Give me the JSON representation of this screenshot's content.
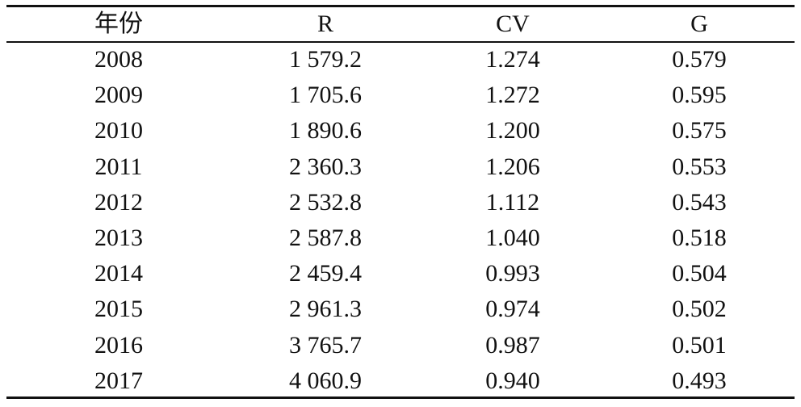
{
  "table": {
    "header": [
      "年份",
      "R",
      "CV",
      "G"
    ],
    "rows": [
      [
        "2008",
        "1 579.2",
        "1.274",
        "0.579"
      ],
      [
        "2009",
        "1 705.6",
        "1.272",
        "0.595"
      ],
      [
        "2010",
        "1 890.6",
        "1.200",
        "0.575"
      ],
      [
        "2011",
        "2 360.3",
        "1.206",
        "0.553"
      ],
      [
        "2012",
        "2 532.8",
        "1.112",
        "0.543"
      ],
      [
        "2013",
        "2 587.8",
        "1.040",
        "0.518"
      ],
      [
        "2014",
        "2 459.4",
        "0.993",
        "0.504"
      ],
      [
        "2015",
        "2 961.3",
        "0.974",
        "0.502"
      ],
      [
        "2016",
        "3 765.7",
        "0.987",
        "0.501"
      ],
      [
        "2017",
        "4 060.9",
        "0.940",
        "0.493"
      ]
    ]
  }
}
